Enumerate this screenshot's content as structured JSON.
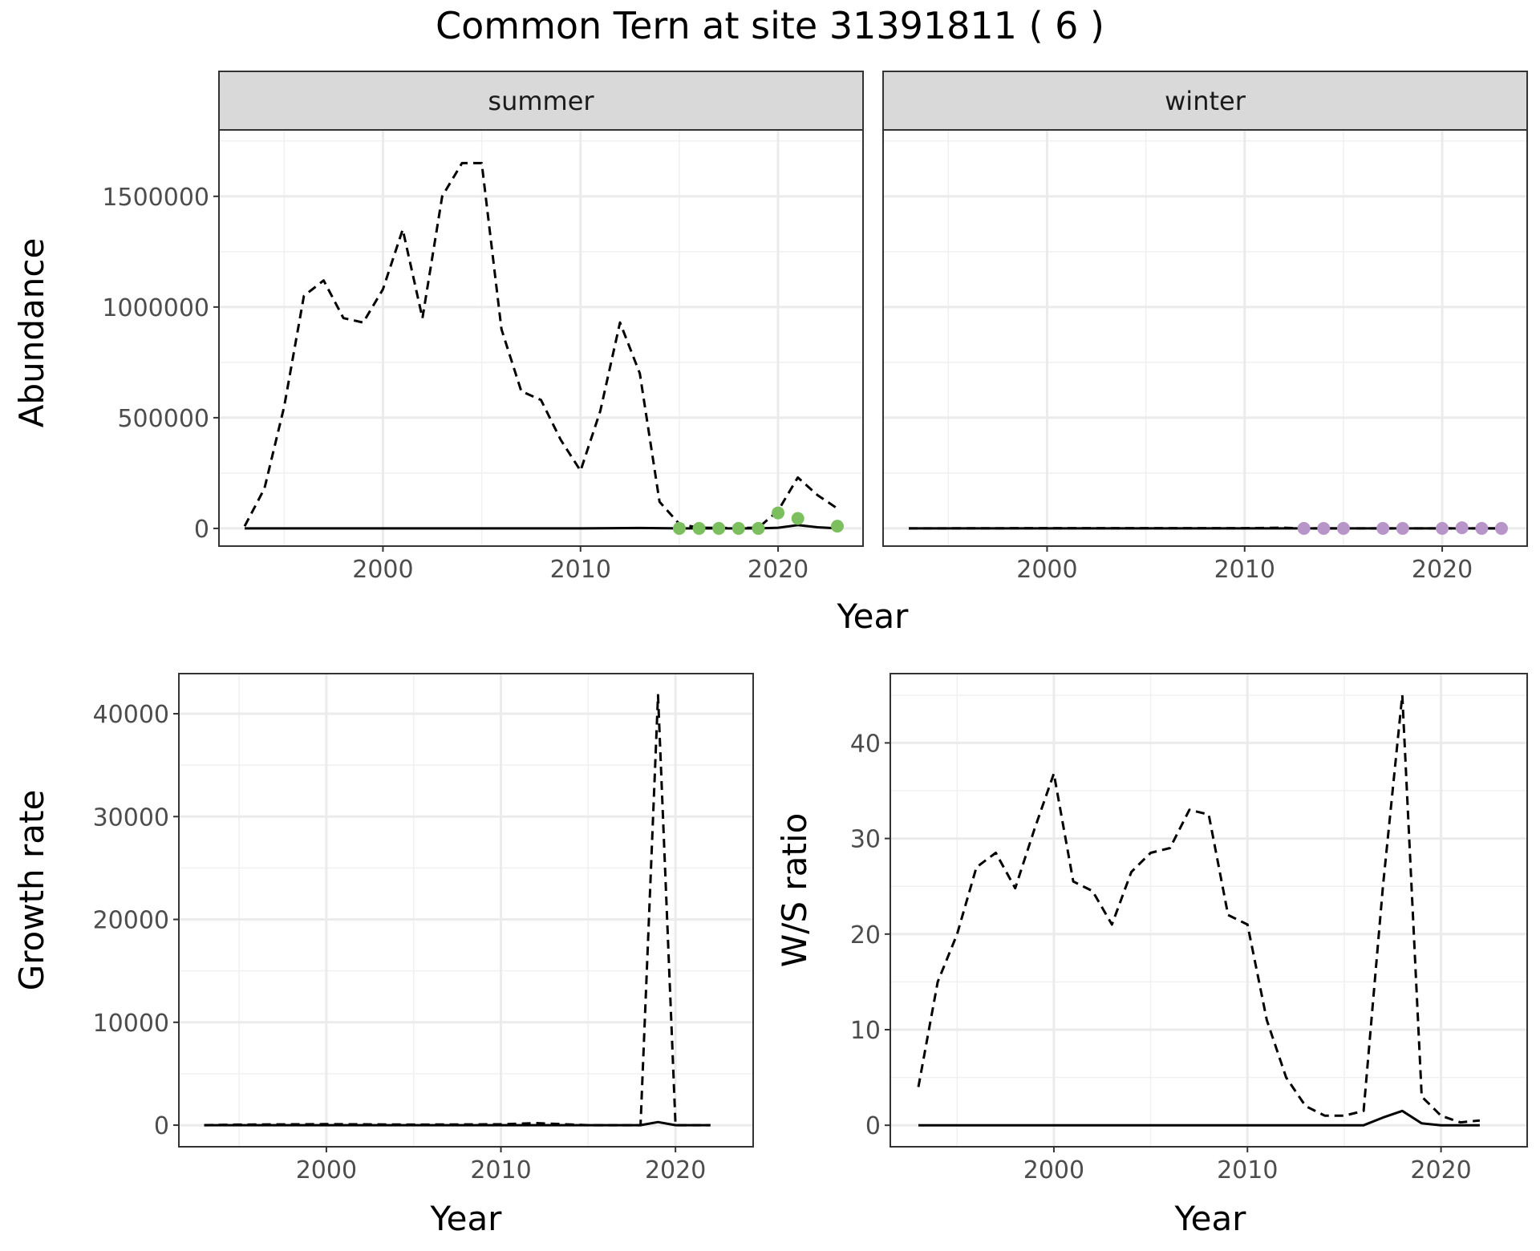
{
  "title": "Common Tern at site 31391811 ( 6 )",
  "chart_data": [
    {
      "type": "line",
      "panel": "abundance",
      "facets": [
        "summer",
        "winter"
      ],
      "xlabel": "Year",
      "ylabel": "Abundance",
      "xlim": [
        1991.7,
        2024.3
      ],
      "ylim": [
        -80000,
        1800000
      ],
      "x_ticks": [
        2000,
        2010,
        2020
      ],
      "y_ticks": [
        0,
        500000,
        1000000,
        1500000
      ],
      "y_tick_labels": [
        "0",
        "500000",
        "1000000",
        "1500000"
      ],
      "grid": true,
      "series": [
        {
          "style": "dashed",
          "facet": "summer",
          "x": [
            1993,
            1994,
            1995,
            1996,
            1997,
            1998,
            1999,
            2000,
            2001,
            2002,
            2003,
            2004,
            2005,
            2006,
            2007,
            2008,
            2009,
            2010,
            2011,
            2012,
            2013,
            2014,
            2015,
            2016,
            2017,
            2018,
            2019,
            2020,
            2021,
            2022,
            2023
          ],
          "y": [
            10000,
            180000,
            550000,
            1050000,
            1120000,
            950000,
            930000,
            1080000,
            1350000,
            950000,
            1500000,
            1650000,
            1650000,
            900000,
            620000,
            580000,
            400000,
            260000,
            530000,
            930000,
            700000,
            120000,
            20000,
            3000,
            2000,
            2000,
            3000,
            80000,
            230000,
            150000,
            90000
          ]
        },
        {
          "style": "solid",
          "facet": "summer",
          "x": [
            1993,
            1995,
            2000,
            2005,
            2010,
            2013,
            2015,
            2016,
            2017,
            2018,
            2019,
            2020,
            2021,
            2022,
            2023
          ],
          "y": [
            0,
            0,
            0,
            0,
            0,
            2000,
            0,
            0,
            0,
            0,
            0,
            3000,
            15000,
            5000,
            0
          ]
        },
        {
          "style": "dashed",
          "facet": "winter",
          "x": [
            1993,
            2000,
            2005,
            2010,
            2012,
            2013,
            2015,
            2020,
            2023
          ],
          "y": [
            0,
            1000,
            1000,
            1000,
            3000,
            0,
            0,
            0,
            0
          ]
        },
        {
          "style": "solid",
          "facet": "winter",
          "x": [
            1993,
            2000,
            2010,
            2020,
            2023
          ],
          "y": [
            0,
            0,
            0,
            0,
            0
          ]
        }
      ],
      "points": [
        {
          "facet": "summer",
          "color": "#7cbf5f",
          "x": [
            2015,
            2016,
            2017,
            2018,
            2019,
            2020,
            2021,
            2023
          ],
          "y": [
            0,
            0,
            0,
            0,
            0,
            70000,
            45000,
            10000
          ]
        },
        {
          "facet": "winter",
          "color": "#b895c9",
          "x": [
            2013,
            2014,
            2015,
            2017,
            2018,
            2020,
            2021,
            2022,
            2023
          ],
          "y": [
            0,
            0,
            0,
            0,
            0,
            0,
            3000,
            0,
            0
          ]
        }
      ]
    },
    {
      "type": "line",
      "panel": "growth",
      "xlabel": "Year",
      "ylabel": "Growth rate",
      "xlim": [
        1991.55,
        2024.45
      ],
      "ylim": [
        -2100,
        43900
      ],
      "x_ticks": [
        2000,
        2010,
        2020
      ],
      "y_ticks": [
        0,
        10000,
        20000,
        30000,
        40000
      ],
      "y_tick_labels": [
        "0",
        "10000",
        "20000",
        "30000",
        "40000"
      ],
      "grid": true,
      "series": [
        {
          "style": "dashed",
          "x": [
            1993,
            1995,
            2000,
            2005,
            2010,
            2012,
            2015,
            2018,
            2019,
            2020,
            2021,
            2022
          ],
          "y": [
            0,
            50,
            100,
            50,
            80,
            200,
            0,
            0,
            41800,
            0,
            0,
            0
          ]
        },
        {
          "style": "solid",
          "x": [
            1993,
            2000,
            2010,
            2018,
            2019,
            2020,
            2021,
            2022
          ],
          "y": [
            0,
            0,
            0,
            0,
            300,
            0,
            0,
            0
          ]
        }
      ]
    },
    {
      "type": "line",
      "panel": "ws_ratio",
      "xlabel": "Year",
      "ylabel": "W/S ratio",
      "xlim": [
        1991.55,
        2024.45
      ],
      "ylim": [
        -2.25,
        47.25
      ],
      "x_ticks": [
        2000,
        2010,
        2020
      ],
      "y_ticks": [
        0,
        10,
        20,
        30,
        40
      ],
      "y_tick_labels": [
        "0",
        "10",
        "20",
        "30",
        "40"
      ],
      "grid": true,
      "series": [
        {
          "style": "dashed",
          "x": [
            1993,
            1994,
            1995,
            1996,
            1997,
            1998,
            1999,
            2000,
            2001,
            2002,
            2003,
            2004,
            2005,
            2006,
            2007,
            2008,
            2009,
            2010,
            2011,
            2012,
            2013,
            2014,
            2015,
            2016,
            2017,
            2018,
            2019,
            2020,
            2021,
            2022
          ],
          "y": [
            4,
            15,
            20,
            27,
            28.5,
            24.8,
            31,
            36.8,
            25.5,
            24.5,
            21,
            26.5,
            28.5,
            29,
            33,
            32.5,
            22,
            21,
            11,
            5,
            2,
            1,
            1,
            1.5,
            25,
            45,
            3,
            1,
            0.3,
            0.5
          ]
        },
        {
          "style": "solid",
          "x": [
            1993,
            2000,
            2010,
            2016,
            2017,
            2018,
            2019,
            2020,
            2022
          ],
          "y": [
            0,
            0,
            0,
            0,
            0.8,
            1.5,
            0.2,
            0,
            0
          ]
        }
      ]
    }
  ]
}
